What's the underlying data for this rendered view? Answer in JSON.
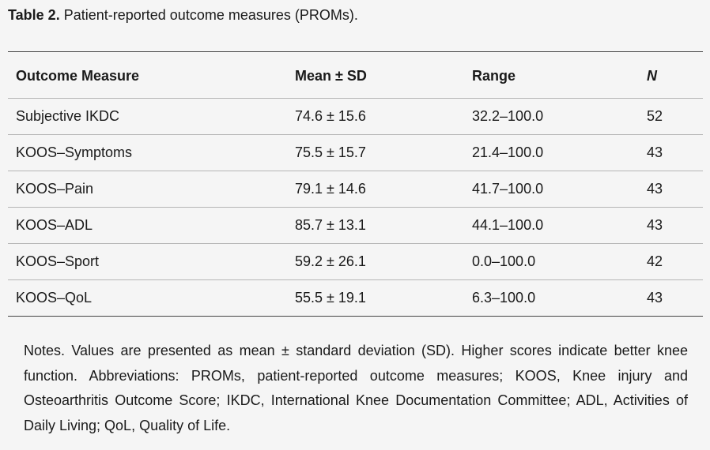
{
  "caption": {
    "label": "Table 2.",
    "text": "Patient-reported outcome measures (PROMs)."
  },
  "table": {
    "headers": [
      "Outcome Measure",
      "Mean ± SD",
      "Range",
      "N"
    ],
    "rows": [
      [
        "Subjective IKDC",
        "74.6 ± 15.6",
        "32.2–100.0",
        "52"
      ],
      [
        "KOOS–Symptoms",
        "75.5 ± 15.7",
        "21.4–100.0",
        "43"
      ],
      [
        "KOOS–Pain",
        "79.1 ± 14.6",
        "41.7–100.0",
        "43"
      ],
      [
        "KOOS–ADL",
        "85.7 ± 13.1",
        "44.1–100.0",
        "43"
      ],
      [
        "KOOS–Sport",
        "59.2 ± 26.1",
        "0.0–100.0",
        "42"
      ],
      [
        "KOOS–QoL",
        "55.5 ± 19.1",
        "6.3–100.0",
        "43"
      ]
    ]
  },
  "notes": "Notes. Values are presented as mean ± standard deviation (SD). Higher scores indicate better knee function. Abbreviations: PROMs, patient-reported outcome measures; KOOS, Knee injury and Osteoarthritis Outcome Score; IKDC, International Knee Documentation Committee; ADL, Activities of Daily Living; QoL, Quality of Life."
}
